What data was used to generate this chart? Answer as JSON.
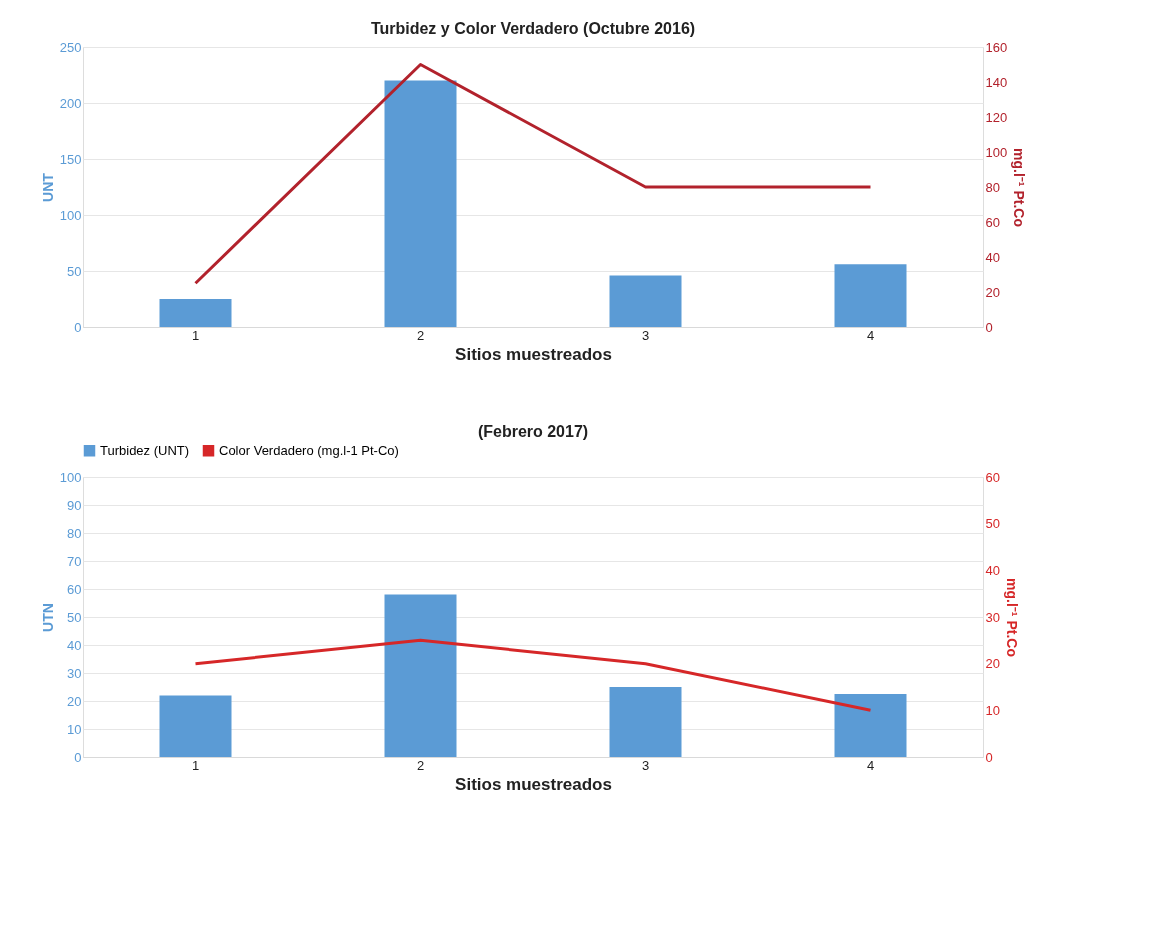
{
  "chart_data": [
    {
      "type": "bar",
      "title": "Turbidez y Color Verdadero (Octubre 2016)",
      "xlabel": "Sitios muestreados",
      "ylabel": "UNT",
      "y2label": "mg.l⁻¹ Pt.Co",
      "categories": [
        "1",
        "2",
        "3",
        "4"
      ],
      "series": [
        {
          "color": "#5b9bd5",
          "values": [
            25,
            220,
            46,
            56
          ]
        },
        {
          "type": "line",
          "axis": "y2",
          "color": "#b2222c",
          "values": [
            25,
            150,
            80,
            80
          ]
        }
      ],
      "ylim": [
        0,
        250
      ],
      "yticks": [
        0,
        50,
        100,
        150,
        200,
        250
      ],
      "y2lim": [
        0,
        160
      ],
      "y2ticks": [
        0,
        20,
        40,
        60,
        80,
        100,
        120,
        140,
        160
      ],
      "grid": "y",
      "legend": false
    },
    {
      "type": "bar",
      "title": "(Febrero 2017)",
      "xlabel": "Sitios muestreados",
      "ylabel": "UTN",
      "y2label": "mg.l⁻¹ Pt.Co",
      "categories": [
        "1",
        "2",
        "3",
        "4"
      ],
      "series": [
        {
          "name": "Turbidez (UNT)",
          "color": "#5b9bd5",
          "values": [
            22,
            58,
            25,
            22.5
          ]
        },
        {
          "type": "line",
          "axis": "y2",
          "name": "Color Verdadero (mg.l-1 Pt-Co)",
          "color": "#d62728",
          "values": [
            20,
            25,
            20,
            10
          ]
        }
      ],
      "ylim": [
        0,
        100
      ],
      "yticks": [
        0,
        10,
        20,
        30,
        40,
        50,
        60,
        70,
        80,
        90,
        100
      ],
      "y2lim": [
        0,
        60
      ],
      "y2ticks": [
        0,
        10,
        20,
        30,
        40,
        50,
        60
      ],
      "grid": "y",
      "legend": "top"
    }
  ]
}
